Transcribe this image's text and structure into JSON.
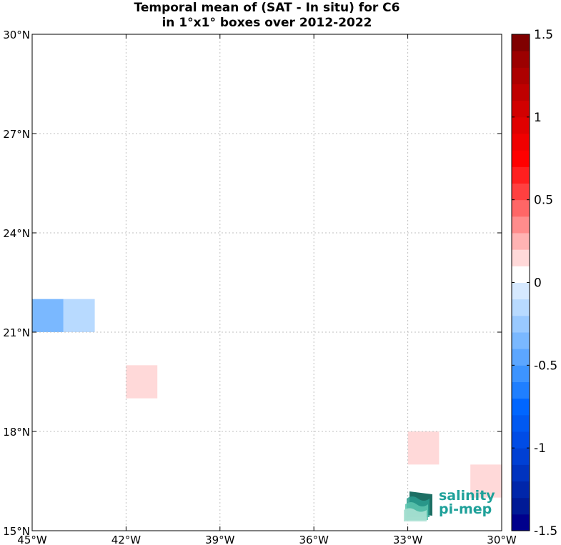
{
  "title_line1": "Temporal mean of (SAT - In situ) for C6",
  "title_line2": "in 1°x1° boxes over 2012-2022",
  "logo": {
    "line1": "salinity",
    "line2": "pi-mep"
  },
  "chart_data": {
    "type": "heatmap",
    "x_ticks": [
      {
        "value": -45,
        "label": "45°W"
      },
      {
        "value": -42,
        "label": "42°W"
      },
      {
        "value": -39,
        "label": "39°W"
      },
      {
        "value": -36,
        "label": "36°W"
      },
      {
        "value": -33,
        "label": "33°W"
      },
      {
        "value": -30,
        "label": "30°W"
      }
    ],
    "y_ticks": [
      {
        "value": 15,
        "label": "15°N"
      },
      {
        "value": 18,
        "label": "18°N"
      },
      {
        "value": 21,
        "label": "21°N"
      },
      {
        "value": 24,
        "label": "24°N"
      },
      {
        "value": 27,
        "label": "27°N"
      },
      {
        "value": 30,
        "label": "30°N"
      }
    ],
    "xlim": [
      -45,
      -30
    ],
    "ylim": [
      15,
      30
    ],
    "grid": true,
    "colorbar": {
      "vmin": -1.5,
      "vmax": 1.5,
      "levels": 30,
      "ticks": [
        {
          "value": 1.5,
          "label": "1.5"
        },
        {
          "value": 1.0,
          "label": "1"
        },
        {
          "value": 0.5,
          "label": "0.5"
        },
        {
          "value": 0.0,
          "label": "0"
        },
        {
          "value": -0.5,
          "label": "-0.5"
        },
        {
          "value": -1.0,
          "label": "-1"
        },
        {
          "value": -1.5,
          "label": "-1.5"
        }
      ],
      "colors": [
        "#00008c",
        "#001a96",
        "#0026aa",
        "#0033bf",
        "#0040d4",
        "#004ce6",
        "#0059f2",
        "#0066ff",
        "#1f7fff",
        "#3d94ff",
        "#5ca6ff",
        "#7ab8ff",
        "#99c9ff",
        "#b8daff",
        "#d6e9ff",
        "#ffffff",
        "#ffd9d9",
        "#ffb3b3",
        "#ff8c8c",
        "#ff6666",
        "#ff4040",
        "#ff1f1f",
        "#ff0000",
        "#f00000",
        "#e00000",
        "#d10000",
        "#bf0000",
        "#ad0000",
        "#9c0000",
        "#800000"
      ]
    },
    "cells": [
      {
        "lon": -45,
        "lat": 21,
        "value": -0.4
      },
      {
        "lon": -44,
        "lat": 21,
        "value": -0.15
      },
      {
        "lon": -42,
        "lat": 19,
        "value": 0.15
      },
      {
        "lon": -33,
        "lat": 17,
        "value": 0.15
      },
      {
        "lon": -31,
        "lat": 16,
        "value": 0.15
      }
    ]
  }
}
